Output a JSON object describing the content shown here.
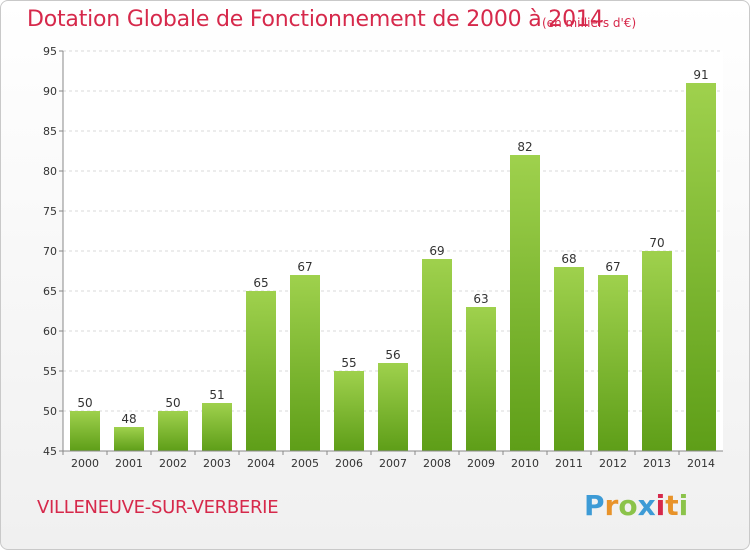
{
  "title": "Dotation Globale de Fonctionnement de 2000 à 2014",
  "subtitle": "(en milliers d'€)",
  "commune": "VILLENEUVE-SUR-VERBERIE",
  "logo": {
    "letters": [
      {
        "ch": "P",
        "color": "#3d9bd6"
      },
      {
        "ch": "r",
        "color": "#e8932a"
      },
      {
        "ch": "o",
        "color": "#8bc34a"
      },
      {
        "ch": "x",
        "color": "#3d9bd6"
      },
      {
        "ch": "i",
        "color": "#d6294b"
      },
      {
        "ch": "t",
        "color": "#e8932a"
      },
      {
        "ch": "i",
        "color": "#8bc34a"
      }
    ]
  },
  "chart_data": {
    "type": "bar",
    "categories": [
      "2000",
      "2001",
      "2002",
      "2003",
      "2004",
      "2005",
      "2006",
      "2007",
      "2008",
      "2009",
      "2010",
      "2011",
      "2012",
      "2013",
      "2014"
    ],
    "values": [
      50,
      48,
      50,
      51,
      65,
      67,
      55,
      56,
      69,
      63,
      82,
      68,
      67,
      70,
      91
    ],
    "ylim": [
      45,
      95
    ],
    "yticks": [
      45,
      50,
      55,
      60,
      65,
      70,
      75,
      80,
      85,
      90,
      95
    ],
    "grid": true,
    "bar_color_top": "#9fd14d",
    "bar_color_bottom": "#5e9e18",
    "title_color": "#d6294b"
  }
}
